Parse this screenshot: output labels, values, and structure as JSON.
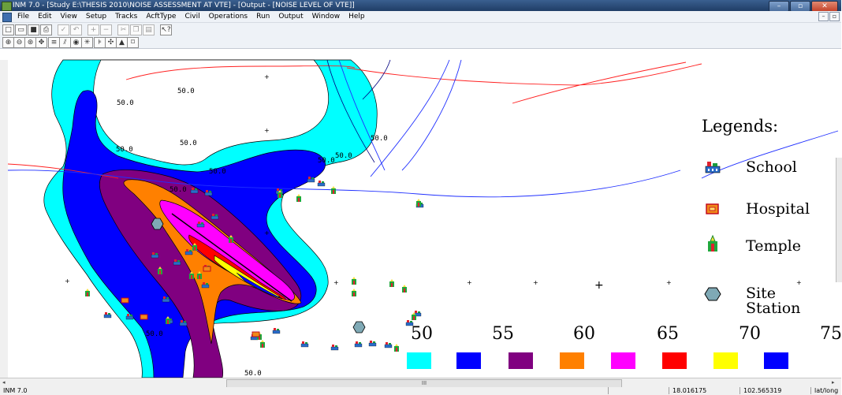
{
  "window": {
    "title": "INM 7.0  - [Study E:\\THESIS 2010\\NOISE ASSESSMENT AT VTE] - [Output - [NOISE LEVEL OF VTE]]",
    "minimize": "–",
    "maximize": "▫",
    "close": "✕"
  },
  "menu": [
    "File",
    "Edit",
    "View",
    "Setup",
    "Tracks",
    "AcftType",
    "Civil",
    "Operations",
    "Run",
    "Output",
    "Window",
    "Help"
  ],
  "toolbar1": [
    {
      "icon": "new-icon",
      "glyph": "□"
    },
    {
      "icon": "open-icon",
      "glyph": "▭"
    },
    {
      "icon": "save-icon",
      "glyph": "■"
    },
    {
      "icon": "print-icon",
      "glyph": "⎙"
    },
    {
      "icon": "check-icon",
      "glyph": "✓",
      "disabled": true
    },
    {
      "icon": "undo-icon",
      "glyph": "↶",
      "disabled": true
    },
    {
      "icon": "add-icon",
      "glyph": "+",
      "disabled": true
    },
    {
      "icon": "remove-icon",
      "glyph": "−",
      "disabled": true
    },
    {
      "icon": "cut-icon",
      "glyph": "✂",
      "disabled": true
    },
    {
      "icon": "copy-icon",
      "glyph": "❐",
      "disabled": true
    },
    {
      "icon": "paste-icon",
      "glyph": "▤",
      "disabled": true
    },
    {
      "icon": "help-pointer-icon",
      "glyph": "↖?"
    }
  ],
  "toolbar2": [
    {
      "icon": "zoom-in-icon",
      "glyph": "⊕"
    },
    {
      "icon": "zoom-out-icon",
      "glyph": "⊖"
    },
    {
      "icon": "zoom-window-icon",
      "glyph": "⊛"
    },
    {
      "icon": "pan-icon",
      "glyph": "✥"
    },
    {
      "icon": "grid-icon",
      "glyph": "≡"
    },
    {
      "icon": "tracks-icon",
      "glyph": "⫽"
    },
    {
      "icon": "contour-icon",
      "glyph": "◉"
    },
    {
      "icon": "points-icon",
      "glyph": "✳"
    },
    {
      "icon": "runway-icon",
      "glyph": "⊧"
    },
    {
      "icon": "network-icon",
      "glyph": "✣"
    },
    {
      "icon": "terrain-icon",
      "glyph": "▲"
    },
    {
      "icon": "frame-icon",
      "glyph": "⌑"
    }
  ],
  "map": {
    "contour_labels": [
      "50.0",
      "50.0",
      "50.0",
      "50.0",
      "50.0",
      "50.0",
      "50.0",
      "50.0",
      "50.0",
      "50.0",
      "50.0"
    ],
    "contour_colors": {
      "c50": "#00ffff",
      "c55": "#0000ff",
      "c60": "#800080",
      "c65": "#ff8000",
      "c70": "#ff00ff",
      "c75": "#ff0000",
      "c80": "#ffff00",
      "c85": "#0000ff"
    }
  },
  "legend": {
    "title": "Legends:",
    "items": [
      {
        "icon": "school-icon",
        "label": "School"
      },
      {
        "icon": "hospital-icon",
        "label": "Hospital"
      },
      {
        "icon": "temple-icon",
        "label": "Temple"
      },
      {
        "icon": "site-station-icon",
        "label": "Site Station"
      }
    ]
  },
  "scale": {
    "numbers": [
      "50",
      "55",
      "60",
      "65",
      "70",
      "75"
    ],
    "swatches": [
      "#00ffff",
      "#0000ff",
      "#800080",
      "#ff8000",
      "#ff00ff",
      "#ff0000",
      "#ffff00",
      "#0000ff"
    ]
  },
  "scrollbar": {
    "thumb_label": "III",
    "left_arrow": "◂",
    "right_arrow": "▸"
  },
  "status": {
    "app": "INM 7.0",
    "lat": "18.016175",
    "lon": "102.565319",
    "mode": "lat/long"
  }
}
